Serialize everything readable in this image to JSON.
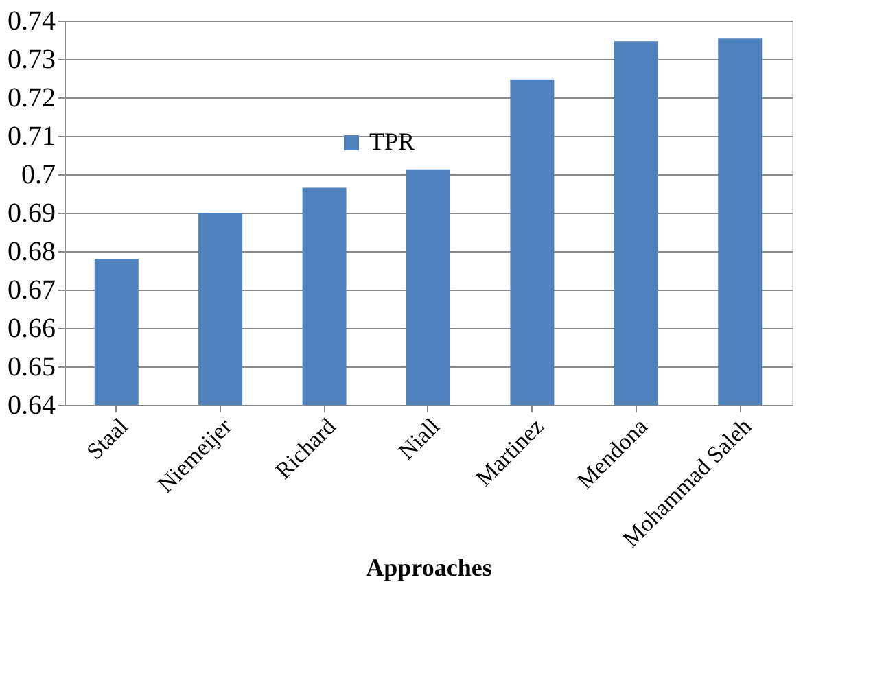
{
  "chart_data": {
    "type": "bar",
    "xlabel": "Approaches",
    "categories": [
      "Staal",
      "Niemeijer",
      "Richard",
      "Niall",
      "Martinez",
      "Mendona",
      "Mohammad Saleh"
    ],
    "series": [
      {
        "name": "TPR",
        "color": "#4f81bd",
        "values": [
          0.678,
          0.69,
          0.6965,
          0.7013,
          0.7247,
          0.7346,
          0.7353
        ]
      }
    ],
    "ylim": [
      0.64,
      0.74
    ],
    "yticks": [
      0.64,
      0.65,
      0.66,
      0.67,
      0.68,
      0.69,
      0.7,
      0.71,
      0.72,
      0.73,
      0.74
    ],
    "grid": "y",
    "legend": "top left"
  }
}
